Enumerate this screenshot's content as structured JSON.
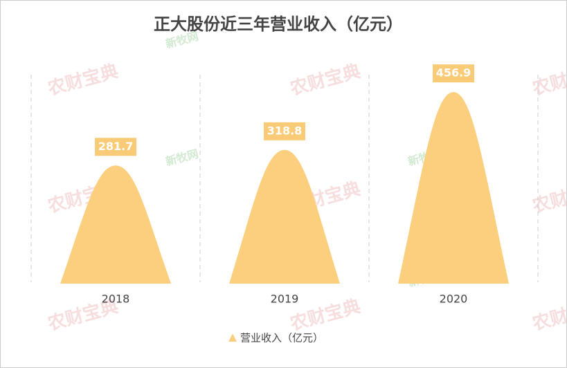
{
  "chart_data": {
    "type": "pictorial-bar",
    "title": "正大股份近三年营业收入（亿元）",
    "categories": [
      "2018",
      "2019",
      "2020"
    ],
    "series": [
      {
        "name": "营业收入（亿元）",
        "color": "#fbcf7e",
        "values": [
          281.7,
          318.8,
          456.9
        ]
      }
    ],
    "ylim": [
      0,
      500
    ],
    "legend": "bottom",
    "watermarks": [
      "农财宝典",
      "新牧网"
    ]
  }
}
